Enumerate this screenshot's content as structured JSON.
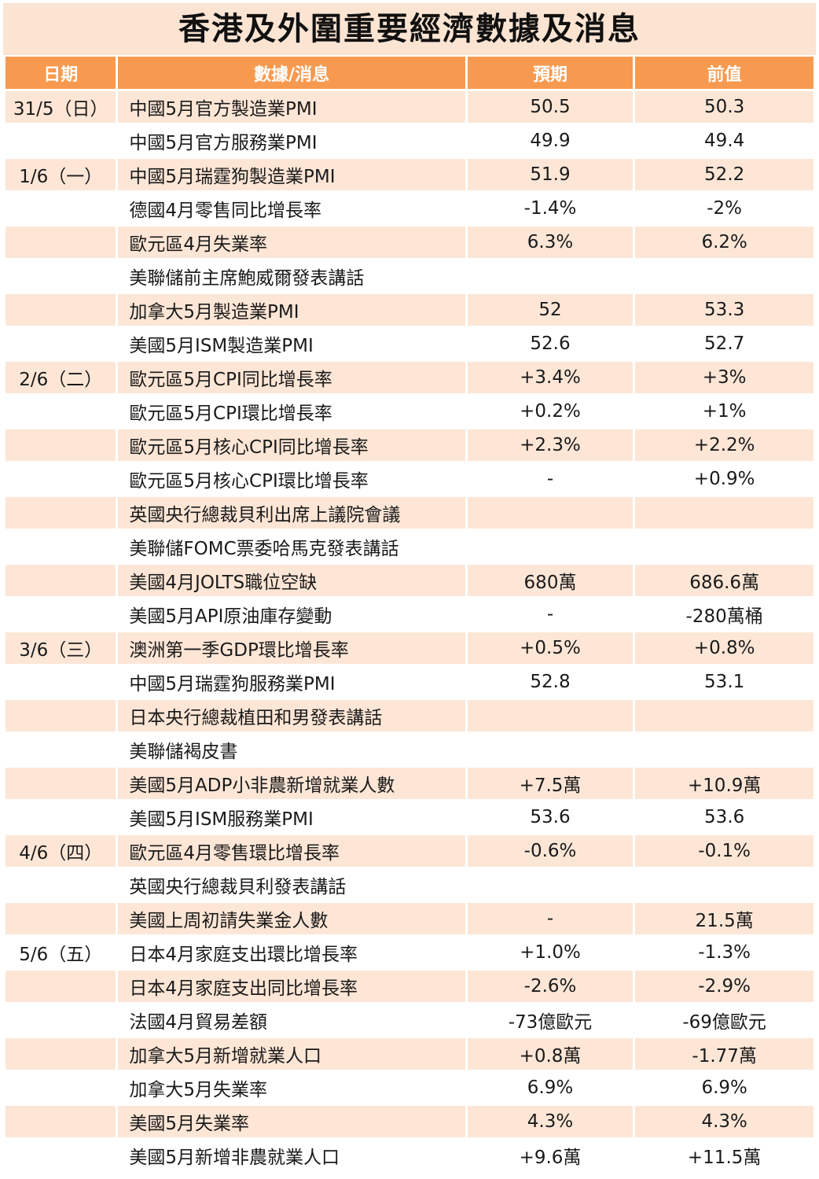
{
  "title": "香港及外圍重要經濟數據及消息",
  "columns": {
    "date": "日期",
    "item": "數據/消息",
    "expected": "預期",
    "previous": "前值"
  },
  "rows": [
    {
      "date": "31/5（日）",
      "item": "中國5月官方製造業PMI",
      "expected": "50.5",
      "previous": "50.3"
    },
    {
      "date": "",
      "item": "中國5月官方服務業PMI",
      "expected": "49.9",
      "previous": "49.4"
    },
    {
      "date": "1/6（一）",
      "item": "中國5月瑞霆狗製造業PMI",
      "expected": "51.9",
      "previous": "52.2"
    },
    {
      "date": "",
      "item": "德國4月零售同比增長率",
      "expected": "-1.4%",
      "previous": "-2%"
    },
    {
      "date": "",
      "item": "歐元區4月失業率",
      "expected": "6.3%",
      "previous": "6.2%"
    },
    {
      "date": "",
      "item": "美聯儲前主席鮑威爾發表講話",
      "expected": "",
      "previous": ""
    },
    {
      "date": "",
      "item": "加拿大5月製造業PMI",
      "expected": "52",
      "previous": "53.3"
    },
    {
      "date": "",
      "item": "美國5月ISM製造業PMI",
      "expected": "52.6",
      "previous": "52.7"
    },
    {
      "date": "2/6（二）",
      "item": "歐元區5月CPI同比增長率",
      "expected": "+3.4%",
      "previous": "+3%"
    },
    {
      "date": "",
      "item": "歐元區5月CPI環比增長率",
      "expected": "+0.2%",
      "previous": "+1%"
    },
    {
      "date": "",
      "item": "歐元區5月核心CPI同比增長率",
      "expected": "+2.3%",
      "previous": "+2.2%"
    },
    {
      "date": "",
      "item": "歐元區5月核心CPI環比增長率",
      "expected": "-",
      "previous": "+0.9%"
    },
    {
      "date": "",
      "item": "英國央行總裁貝利出席上議院會議",
      "expected": "",
      "previous": ""
    },
    {
      "date": "",
      "item": "美聯儲FOMC票委哈馬克發表講話",
      "expected": "",
      "previous": ""
    },
    {
      "date": "",
      "item": "美國4月JOLTS職位空缺",
      "expected": "680萬",
      "previous": "686.6萬"
    },
    {
      "date": "",
      "item": "美國5月API原油庫存變動",
      "expected": "-",
      "previous": "-280萬桶"
    },
    {
      "date": "3/6（三）",
      "item": "澳洲第一季GDP環比增長率",
      "expected": "+0.5%",
      "previous": "+0.8%"
    },
    {
      "date": "",
      "item": "中國5月瑞霆狗服務業PMI",
      "expected": "52.8",
      "previous": "53.1"
    },
    {
      "date": "",
      "item": "日本央行總裁植田和男發表講話",
      "expected": "",
      "previous": ""
    },
    {
      "date": "",
      "item": "美聯儲褐皮書",
      "expected": "",
      "previous": ""
    },
    {
      "date": "",
      "item": "美國5月ADP小非農新增就業人數",
      "expected": "+7.5萬",
      "previous": "+10.9萬"
    },
    {
      "date": "",
      "item": "美國5月ISM服務業PMI",
      "expected": "53.6",
      "previous": "53.6"
    },
    {
      "date": "4/6（四）",
      "item": "歐元區4月零售環比增長率",
      "expected": "-0.6%",
      "previous": "-0.1%"
    },
    {
      "date": "",
      "item": "英國央行總裁貝利發表講話",
      "expected": "",
      "previous": ""
    },
    {
      "date": "",
      "item": "美國上周初請失業金人數",
      "expected": "-",
      "previous": "21.5萬"
    },
    {
      "date": "5/6（五）",
      "item": "日本4月家庭支出環比增長率",
      "expected": "+1.0%",
      "previous": "-1.3%"
    },
    {
      "date": "",
      "item": "日本4月家庭支出同比增長率",
      "expected": "-2.6%",
      "previous": "-2.9%"
    },
    {
      "date": "",
      "item": "法國4月貿易差額",
      "expected": "-73億歐元",
      "previous": "-69億歐元"
    },
    {
      "date": "",
      "item": "加拿大5月新增就業人口",
      "expected": "+0.8萬",
      "previous": "-1.77萬"
    },
    {
      "date": "",
      "item": "加拿大5月失業率",
      "expected": "6.9%",
      "previous": "6.9%"
    },
    {
      "date": "",
      "item": "美國5月失業率",
      "expected": "4.3%",
      "previous": "4.3%"
    },
    {
      "date": "",
      "item": "美國5月新增非農就業人口",
      "expected": "+9.6萬",
      "previous": "+11.5萬"
    }
  ],
  "colors": {
    "header": "#f79a4f",
    "title_band": "#fce4d2",
    "row_tint": "#fde6d6"
  }
}
